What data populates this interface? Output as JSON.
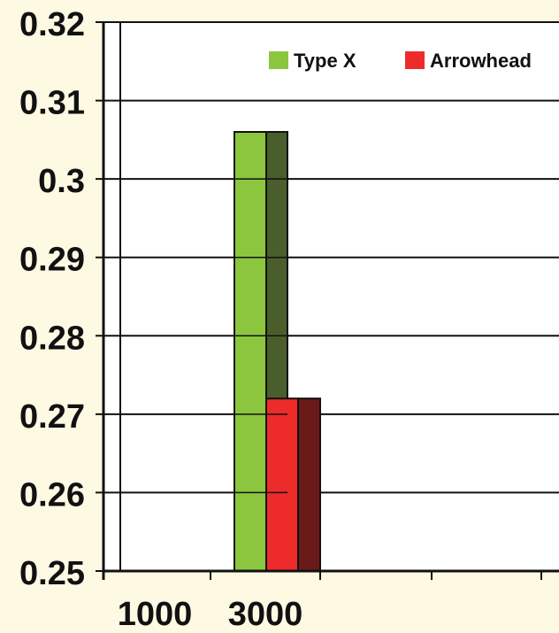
{
  "colors": {
    "background": "#fdf9e3",
    "plot_background": "#ffffff",
    "grid": "#111111",
    "type_x_front": "#8cc63f",
    "type_x_side": "#4a5e2b",
    "arrowhead_front": "#ee2b2b",
    "arrowhead_side": "#6b1a1a"
  },
  "chart_data": {
    "type": "bar",
    "title": "",
    "xlabel": "",
    "ylabel": "",
    "ylim": [
      0.25,
      0.32
    ],
    "y_ticks": [
      "0.32",
      "0.31",
      "0.3",
      "0.29",
      "0.28",
      "0.27",
      "0.26",
      "0.25"
    ],
    "y_tick_values": [
      0.32,
      0.31,
      0.3,
      0.29,
      0.28,
      0.27,
      0.26,
      0.25
    ],
    "x_tick_labels": [
      "1000",
      "3000"
    ],
    "legend_position": "top-right",
    "grid": true,
    "bar_style": "3d",
    "categories": [
      "3000"
    ],
    "series": [
      {
        "name": "Type X",
        "values": [
          0.306
        ]
      },
      {
        "name": "Arrowhead",
        "values": [
          0.272
        ]
      }
    ]
  }
}
